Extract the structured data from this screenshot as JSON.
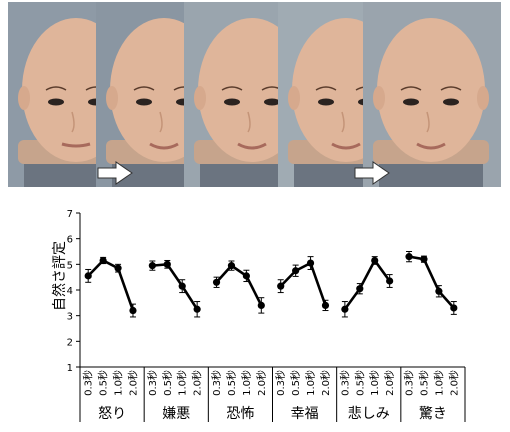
{
  "photo_strip": {
    "panel_colors": [
      "#8e9aa6",
      "#8a96a2",
      "#9aa5ae",
      "#a0abb3",
      "#9aa4ad"
    ],
    "face_color": "#dfb59a",
    "arrow_count": 2
  },
  "chart_data": {
    "type": "line",
    "ylabel": "自然さ評定",
    "ylim": [
      1,
      7
    ],
    "yticks": [
      1,
      2,
      3,
      4,
      5,
      6,
      7
    ],
    "grid": false,
    "error_bars": true,
    "groups": [
      {
        "name": "怒り",
        "categories": [
          "0.3秒",
          "0.5秒",
          "1.0秒",
          "2.0秒"
        ],
        "values": [
          4.55,
          5.15,
          4.85,
          3.2
        ],
        "errors": [
          0.25,
          0.12,
          0.15,
          0.25
        ]
      },
      {
        "name": "嫌悪",
        "categories": [
          "0.3秒",
          "0.5秒",
          "1.0秒",
          "2.0秒"
        ],
        "values": [
          4.95,
          5.0,
          4.15,
          3.25
        ],
        "errors": [
          0.18,
          0.15,
          0.25,
          0.3
        ]
      },
      {
        "name": "恐怖",
        "categories": [
          "0.3秒",
          "0.5秒",
          "1.0秒",
          "2.0秒"
        ],
        "values": [
          4.3,
          4.95,
          4.55,
          3.4
        ],
        "errors": [
          0.2,
          0.18,
          0.22,
          0.3
        ]
      },
      {
        "name": "幸福",
        "categories": [
          "0.3秒",
          "0.5秒",
          "1.0秒",
          "2.0秒"
        ],
        "values": [
          4.15,
          4.75,
          5.05,
          3.4
        ],
        "errors": [
          0.25,
          0.22,
          0.25,
          0.2
        ]
      },
      {
        "name": "悲しみ",
        "categories": [
          "0.3秒",
          "0.5秒",
          "1.0秒",
          "2.0秒"
        ],
        "values": [
          3.25,
          4.05,
          5.15,
          4.35
        ],
        "errors": [
          0.3,
          0.2,
          0.15,
          0.25
        ]
      },
      {
        "name": "驚き",
        "categories": [
          "0.3秒",
          "0.5秒",
          "1.0秒",
          "2.0秒"
        ],
        "values": [
          5.3,
          5.2,
          3.95,
          3.3
        ],
        "errors": [
          0.2,
          0.12,
          0.22,
          0.25
        ]
      }
    ]
  }
}
